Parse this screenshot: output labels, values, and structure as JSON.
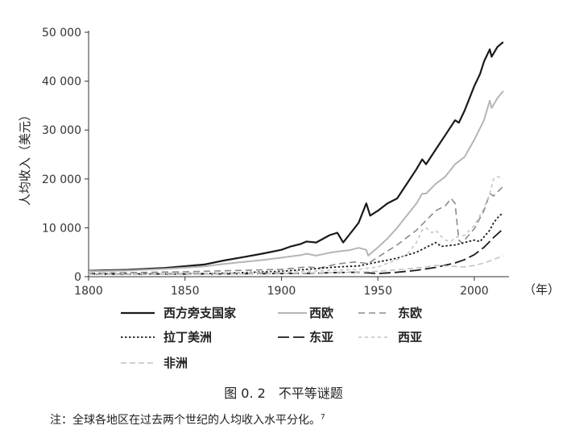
{
  "chart_data": {
    "type": "line",
    "ylabel": "人均收入（美元）",
    "x_unit": "（年）",
    "xlim": [
      1800,
      2018
    ],
    "ylim": [
      0,
      50000
    ],
    "x_ticks": [
      1800,
      1850,
      1900,
      1950,
      2000
    ],
    "x_tick_labels": [
      "1800",
      "1850",
      "1900",
      "1950",
      "2000"
    ],
    "y_ticks": [
      0,
      10000,
      20000,
      30000,
      40000,
      50000
    ],
    "y_tick_labels": [
      "0",
      "10 000",
      "20 000",
      "30 000",
      "40 000",
      "50 000"
    ],
    "grid": false,
    "legend_position": "bottom",
    "series": [
      {
        "name": "西方旁支国家",
        "color": "#1a1a1a",
        "dash": "solid",
        "width": 2.2,
        "points": [
          [
            1800,
            1200
          ],
          [
            1820,
            1400
          ],
          [
            1840,
            1800
          ],
          [
            1860,
            2500
          ],
          [
            1870,
            3300
          ],
          [
            1880,
            4000
          ],
          [
            1890,
            4700
          ],
          [
            1900,
            5500
          ],
          [
            1905,
            6200
          ],
          [
            1910,
            6700
          ],
          [
            1913,
            7200
          ],
          [
            1918,
            7000
          ],
          [
            1925,
            8500
          ],
          [
            1929,
            9000
          ],
          [
            1932,
            7000
          ],
          [
            1935,
            8500
          ],
          [
            1940,
            11000
          ],
          [
            1944,
            15000
          ],
          [
            1946,
            12500
          ],
          [
            1950,
            13500
          ],
          [
            1955,
            15000
          ],
          [
            1960,
            16000
          ],
          [
            1965,
            19000
          ],
          [
            1970,
            22000
          ],
          [
            1973,
            24000
          ],
          [
            1975,
            23000
          ],
          [
            1980,
            26000
          ],
          [
            1985,
            29000
          ],
          [
            1990,
            32000
          ],
          [
            1992,
            31500
          ],
          [
            1995,
            34000
          ],
          [
            2000,
            39000
          ],
          [
            2003,
            41500
          ],
          [
            2005,
            44000
          ],
          [
            2008,
            46500
          ],
          [
            2009,
            45000
          ],
          [
            2012,
            47000
          ],
          [
            2015,
            48000
          ]
        ]
      },
      {
        "name": "西欧",
        "color": "#b5b5b5",
        "dash": "solid",
        "width": 2.0,
        "points": [
          [
            1800,
            1100
          ],
          [
            1820,
            1250
          ],
          [
            1840,
            1600
          ],
          [
            1860,
            2100
          ],
          [
            1870,
            2600
          ],
          [
            1880,
            3000
          ],
          [
            1890,
            3400
          ],
          [
            1900,
            3900
          ],
          [
            1910,
            4400
          ],
          [
            1913,
            4700
          ],
          [
            1918,
            4300
          ],
          [
            1925,
            4900
          ],
          [
            1930,
            5200
          ],
          [
            1935,
            5400
          ],
          [
            1940,
            5900
          ],
          [
            1944,
            5500
          ],
          [
            1945,
            4300
          ],
          [
            1950,
            6000
          ],
          [
            1955,
            7800
          ],
          [
            1960,
            10000
          ],
          [
            1965,
            12500
          ],
          [
            1970,
            15000
          ],
          [
            1973,
            17000
          ],
          [
            1975,
            17000
          ],
          [
            1980,
            19000
          ],
          [
            1985,
            20500
          ],
          [
            1990,
            23000
          ],
          [
            1995,
            24500
          ],
          [
            2000,
            28000
          ],
          [
            2005,
            32000
          ],
          [
            2008,
            36000
          ],
          [
            2009,
            34500
          ],
          [
            2012,
            36500
          ],
          [
            2015,
            38000
          ]
        ]
      },
      {
        "name": "东欧",
        "color": "#8a8a8a",
        "dash": "8,5",
        "width": 1.6,
        "points": [
          [
            1800,
            700
          ],
          [
            1850,
            1000
          ],
          [
            1900,
            1500
          ],
          [
            1913,
            2000
          ],
          [
            1920,
            1800
          ],
          [
            1929,
            2600
          ],
          [
            1938,
            3000
          ],
          [
            1945,
            2700
          ],
          [
            1950,
            4000
          ],
          [
            1960,
            6500
          ],
          [
            1970,
            9500
          ],
          [
            1975,
            11500
          ],
          [
            1980,
            13500
          ],
          [
            1985,
            14500
          ],
          [
            1988,
            16000
          ],
          [
            1990,
            15000
          ],
          [
            1992,
            7500
          ],
          [
            1994,
            6800
          ],
          [
            1996,
            8000
          ],
          [
            2000,
            9800
          ],
          [
            2005,
            13500
          ],
          [
            2008,
            17000
          ],
          [
            2010,
            16500
          ],
          [
            2015,
            18500
          ]
        ]
      },
      {
        "name": "拉丁美洲",
        "color": "#1a1a1a",
        "dash": "2.5,2.5",
        "width": 1.8,
        "points": [
          [
            1800,
            500
          ],
          [
            1850,
            600
          ],
          [
            1870,
            700
          ],
          [
            1900,
            1100
          ],
          [
            1913,
            1500
          ],
          [
            1929,
            2000
          ],
          [
            1940,
            2200
          ],
          [
            1950,
            3000
          ],
          [
            1960,
            3800
          ],
          [
            1970,
            5000
          ],
          [
            1980,
            7000
          ],
          [
            1983,
            6200
          ],
          [
            1990,
            6500
          ],
          [
            2000,
            7500
          ],
          [
            2003,
            7200
          ],
          [
            2008,
            9500
          ],
          [
            2010,
            11000
          ],
          [
            2013,
            12500
          ],
          [
            2015,
            13000
          ]
        ]
      },
      {
        "name": "东亚",
        "color": "#1a1a1a",
        "dash": "14,5",
        "width": 1.8,
        "points": [
          [
            1800,
            600
          ],
          [
            1850,
            550
          ],
          [
            1900,
            650
          ],
          [
            1913,
            700
          ],
          [
            1930,
            850
          ],
          [
            1940,
            900
          ],
          [
            1950,
            650
          ],
          [
            1960,
            900
          ],
          [
            1970,
            1300
          ],
          [
            1980,
            1900
          ],
          [
            1990,
            2800
          ],
          [
            1995,
            3500
          ],
          [
            2000,
            4500
          ],
          [
            2005,
            6000
          ],
          [
            2010,
            8000
          ],
          [
            2015,
            9800
          ]
        ]
      },
      {
        "name": "西亚",
        "color": "#c4c4c4",
        "dash": "4,4",
        "width": 1.6,
        "points": [
          [
            1800,
            600
          ],
          [
            1850,
            700
          ],
          [
            1900,
            900
          ],
          [
            1913,
            1100
          ],
          [
            1940,
            1500
          ],
          [
            1950,
            2000
          ],
          [
            1960,
            3500
          ],
          [
            1965,
            4500
          ],
          [
            1970,
            7000
          ],
          [
            1973,
            9500
          ],
          [
            1975,
            10000
          ],
          [
            1978,
            9000
          ],
          [
            1980,
            9500
          ],
          [
            1983,
            8200
          ],
          [
            1985,
            7500
          ],
          [
            1988,
            7200
          ],
          [
            1990,
            8000
          ],
          [
            1995,
            8500
          ],
          [
            2000,
            10500
          ],
          [
            2005,
            14000
          ],
          [
            2008,
            17000
          ],
          [
            2010,
            20000
          ],
          [
            2012,
            20500
          ],
          [
            2015,
            20000
          ]
        ]
      },
      {
        "name": "非洲",
        "color": "#c4c4c4",
        "dash": "7,4",
        "width": 1.6,
        "points": [
          [
            1800,
            450
          ],
          [
            1850,
            500
          ],
          [
            1900,
            600
          ],
          [
            1913,
            750
          ],
          [
            1940,
            900
          ],
          [
            1950,
            1100
          ],
          [
            1960,
            1400
          ],
          [
            1970,
            1800
          ],
          [
            1975,
            2000
          ],
          [
            1980,
            2300
          ],
          [
            1990,
            2100
          ],
          [
            1995,
            2000
          ],
          [
            2000,
            2300
          ],
          [
            2005,
            2800
          ],
          [
            2010,
            3500
          ],
          [
            2015,
            4300
          ]
        ]
      }
    ]
  },
  "caption": "图 0. 2　不平等谜题",
  "note": "注：全球各地区在过去两个世纪的人均收入水平分化。",
  "note_ref": "7"
}
